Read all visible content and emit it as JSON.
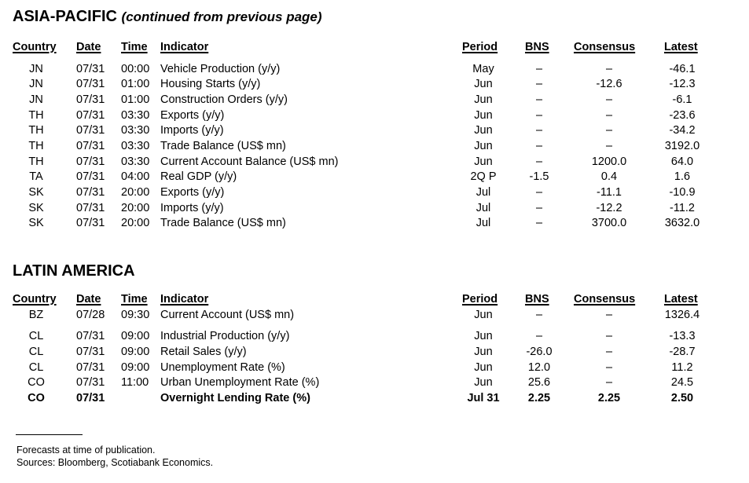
{
  "asia": {
    "title": "ASIA-PACIFIC",
    "subtitle": "(continued from previous page)",
    "headers": {
      "country": "Country",
      "date": "Date",
      "time": "Time",
      "indicator": "Indicator",
      "period": "Period",
      "bns": "BNS",
      "consensus": "Consensus",
      "latest": "Latest"
    },
    "rows": [
      {
        "country": "JN",
        "date": "07/31",
        "time": "00:00",
        "indicator": "Vehicle Production (y/y)",
        "period": "May",
        "bns": "–",
        "consensus": "–",
        "latest": "-46.1"
      },
      {
        "country": "JN",
        "date": "07/31",
        "time": "01:00",
        "indicator": "Housing Starts (y/y)",
        "period": "Jun",
        "bns": "–",
        "consensus": "-12.6",
        "latest": "-12.3"
      },
      {
        "country": "JN",
        "date": "07/31",
        "time": "01:00",
        "indicator": "Construction Orders (y/y)",
        "period": "Jun",
        "bns": "–",
        "consensus": "–",
        "latest": "-6.1"
      },
      {
        "country": "TH",
        "date": "07/31",
        "time": "03:30",
        "indicator": "Exports (y/y)",
        "period": "Jun",
        "bns": "–",
        "consensus": "–",
        "latest": "-23.6"
      },
      {
        "country": "TH",
        "date": "07/31",
        "time": "03:30",
        "indicator": "Imports (y/y)",
        "period": "Jun",
        "bns": "–",
        "consensus": "–",
        "latest": "-34.2"
      },
      {
        "country": "TH",
        "date": "07/31",
        "time": "03:30",
        "indicator": "Trade Balance (US$ mn)",
        "period": "Jun",
        "bns": "–",
        "consensus": "–",
        "latest": "3192.0"
      },
      {
        "country": "TH",
        "date": "07/31",
        "time": "03:30",
        "indicator": "Current Account Balance (US$ mn)",
        "period": "Jun",
        "bns": "–",
        "consensus": "1200.0",
        "latest": "64.0"
      },
      {
        "country": "TA",
        "date": "07/31",
        "time": "04:00",
        "indicator": "Real GDP (y/y)",
        "period": "2Q P",
        "bns": "-1.5",
        "consensus": "0.4",
        "latest": "1.6"
      },
      {
        "country": "SK",
        "date": "07/31",
        "time": "20:00",
        "indicator": "Exports (y/y)",
        "period": "Jul",
        "bns": "–",
        "consensus": "-11.1",
        "latest": "-10.9"
      },
      {
        "country": "SK",
        "date": "07/31",
        "time": "20:00",
        "indicator": "Imports (y/y)",
        "period": "Jul",
        "bns": "–",
        "consensus": "-12.2",
        "latest": "-11.2"
      },
      {
        "country": "SK",
        "date": "07/31",
        "time": "20:00",
        "indicator": "Trade Balance (US$ mn)",
        "period": "Jul",
        "bns": "–",
        "consensus": "3700.0",
        "latest": "3632.0"
      }
    ]
  },
  "latam": {
    "title": "LATIN AMERICA",
    "headers": {
      "country": "Country",
      "date": "Date",
      "time": "Time",
      "indicator": "Indicator",
      "period": "Period",
      "bns": "BNS",
      "consensus": "Consensus",
      "latest": "Latest"
    },
    "rows": [
      {
        "country": "BZ",
        "date": "07/28",
        "time": "09:30",
        "indicator": "Current Account (US$ mn)",
        "period": "Jun",
        "bns": "–",
        "consensus": "–",
        "latest": "1326.4"
      },
      {
        "country": "CL",
        "date": "07/31",
        "time": "09:00",
        "indicator": "Industrial Production (y/y)",
        "period": "Jun",
        "bns": "–",
        "consensus": "–",
        "latest": "-13.3"
      },
      {
        "country": "CL",
        "date": "07/31",
        "time": "09:00",
        "indicator": "Retail Sales (y/y)",
        "period": "Jun",
        "bns": "-26.0",
        "consensus": "–",
        "latest": "-28.7"
      },
      {
        "country": "CL",
        "date": "07/31",
        "time": "09:00",
        "indicator": "Unemployment Rate (%)",
        "period": "Jun",
        "bns": "12.0",
        "consensus": "–",
        "latest": "11.2"
      },
      {
        "country": "CO",
        "date": "07/31",
        "time": "11:00",
        "indicator": "Urban Unemployment Rate (%)",
        "period": "Jun",
        "bns": "25.6",
        "consensus": "–",
        "latest": "24.5"
      },
      {
        "country": "CO",
        "date": "07/31",
        "time": "",
        "indicator": "Overnight Lending Rate (%)",
        "period": "Jul 31",
        "bns": "2.25",
        "consensus": "2.25",
        "latest": "2.50"
      }
    ]
  },
  "footnotes": [
    "Forecasts at time of publication.",
    "Sources: Bloomberg, Scotiabank Economics."
  ]
}
